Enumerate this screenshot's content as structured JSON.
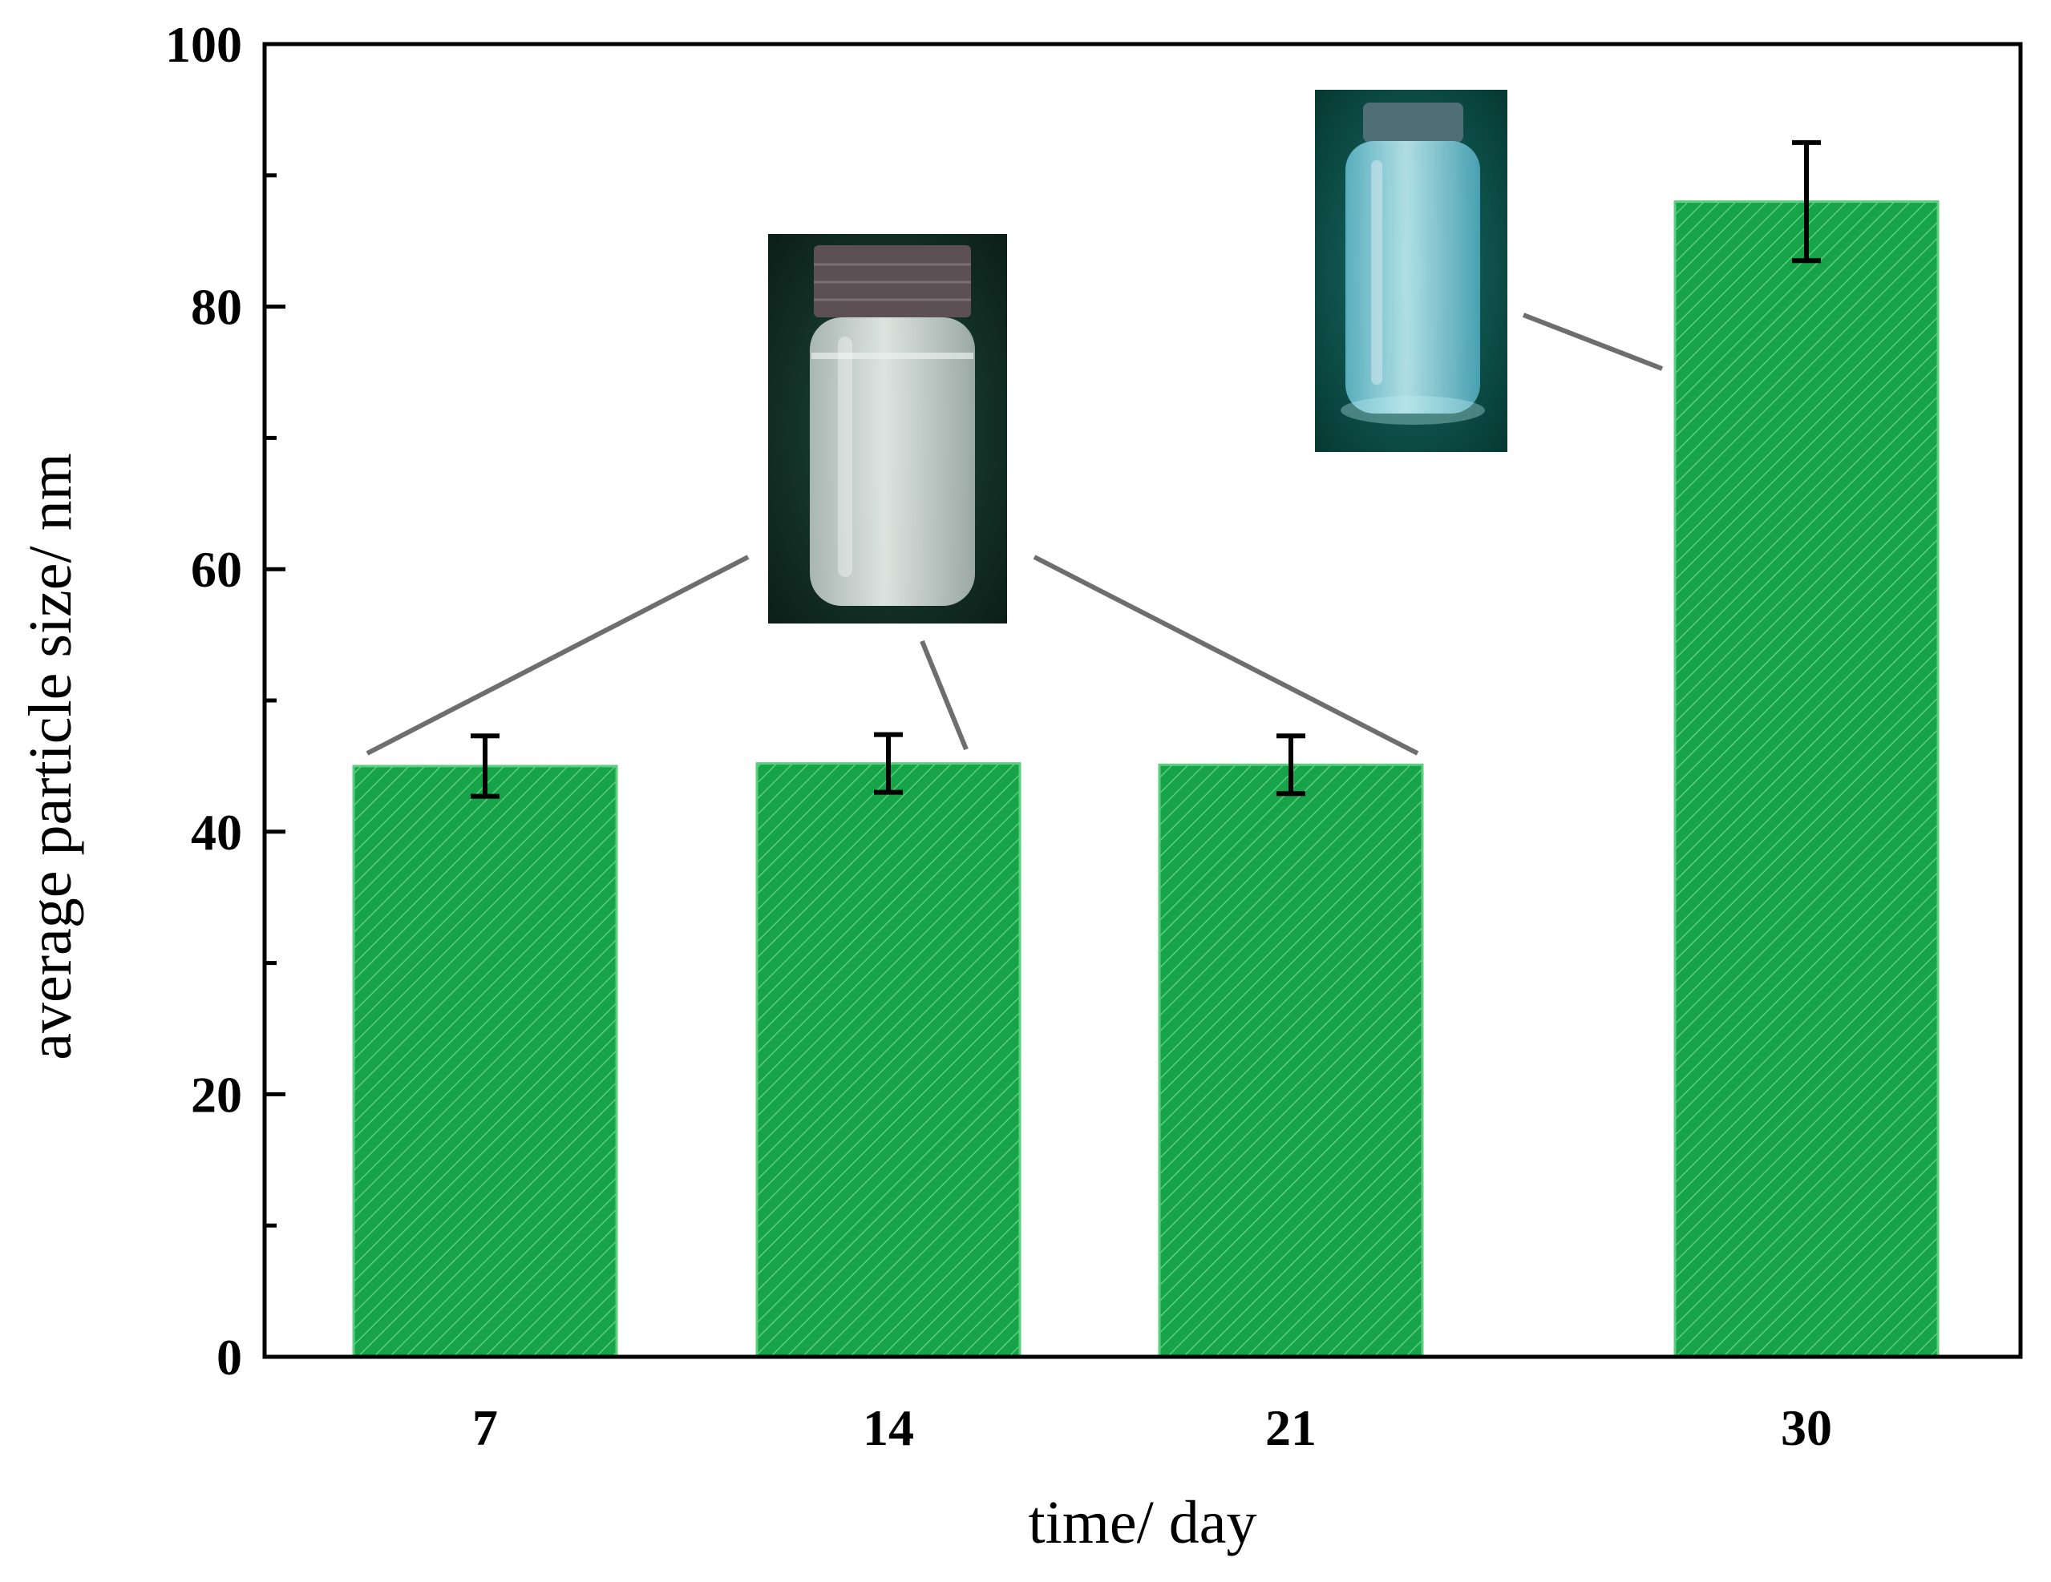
{
  "chart_data": {
    "type": "bar",
    "title": "",
    "xlabel": "time/ day",
    "ylabel": "average particle size/ nm",
    "categories": [
      "7",
      "14",
      "21",
      "30"
    ],
    "x": [
      7,
      14,
      21,
      30
    ],
    "values": [
      45,
      45.2,
      45.1,
      88
    ],
    "error": [
      2.3,
      2.2,
      2.2,
      4.5
    ],
    "ylim": [
      0,
      100
    ],
    "yticks": [
      0,
      20,
      40,
      60,
      80,
      100
    ],
    "y_minor_step": 10,
    "grid": false,
    "legend": "none",
    "bar_color": "#16a34a",
    "bar_hatch_color": "#5ccf7e",
    "insets": [
      {
        "name": "clear-vial-photo",
        "points_to": [
          "7",
          "14",
          "21"
        ],
        "liquid_color": "#dfe7e4",
        "background_color": "#0f2a22"
      },
      {
        "name": "blue-vial-photo",
        "points_to": [
          "30"
        ],
        "liquid_color": "#8fd6e3",
        "background_color": "#0a4a44"
      }
    ]
  }
}
